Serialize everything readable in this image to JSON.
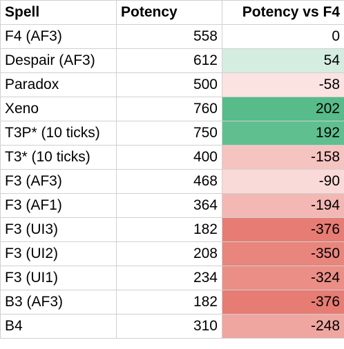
{
  "headers": [
    "Spell",
    "Potency",
    "Potency vs F4"
  ],
  "rows": [
    {
      "spell": "F4 (AF3)",
      "potency": "558",
      "diff": "0",
      "color": "#ffffff"
    },
    {
      "spell": "Despair (AF3)",
      "potency": "612",
      "diff": "54",
      "color": "#d4ede0"
    },
    {
      "spell": "Paradox",
      "potency": "500",
      "diff": "-58",
      "color": "#fbe3e2"
    },
    {
      "spell": "Xeno",
      "potency": "760",
      "diff": "202",
      "color": "#57bb8a"
    },
    {
      "spell": "T3P* (10 ticks)",
      "potency": "750",
      "diff": "192",
      "color": "#5fbf8f"
    },
    {
      "spell": "T3* (10 ticks)",
      "potency": "400",
      "diff": "-158",
      "color": "#f5c4c1"
    },
    {
      "spell": "F3 (AF3)",
      "potency": "468",
      "diff": "-90",
      "color": "#f9dad8"
    },
    {
      "spell": "F3 (AF1)",
      "potency": "364",
      "diff": "-194",
      "color": "#f3b8b4"
    },
    {
      "spell": "F3 (UI3)",
      "potency": "182",
      "diff": "-376",
      "color": "#e67c73"
    },
    {
      "spell": "F3 (UI2)",
      "potency": "208",
      "diff": "-350",
      "color": "#e8857d"
    },
    {
      "spell": "F3 (UI1)",
      "potency": "234",
      "diff": "-324",
      "color": "#ea8e86"
    },
    {
      "spell": "B3 (AF3)",
      "potency": "182",
      "diff": "-376",
      "color": "#e67c73"
    },
    {
      "spell": "B4",
      "potency": "310",
      "diff": "-248",
      "color": "#efa6a0"
    }
  ]
}
